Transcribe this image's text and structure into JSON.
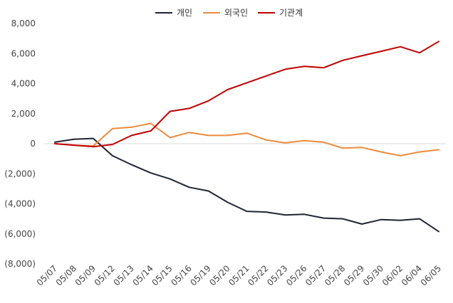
{
  "chart_data": {
    "type": "line",
    "title": "",
    "xlabel": "",
    "ylabel": "",
    "ylim": [
      -8000,
      8000
    ],
    "y_ticks": [
      8000,
      6000,
      4000,
      2000,
      0,
      -2000,
      -4000,
      -6000,
      -8000
    ],
    "y_tick_labels": [
      "8,000",
      "6,000",
      "4,000",
      "2,000",
      "0",
      "(2,000)",
      "(4,000)",
      "(6,000)",
      "(8,000)"
    ],
    "grid": false,
    "legend_position": "top",
    "categories": [
      "05/07",
      "05/08",
      "05/09",
      "05/12",
      "05/13",
      "05/14",
      "05/15",
      "05/16",
      "05/19",
      "05/20",
      "05/21",
      "05/22",
      "05/23",
      "05/26",
      "05/27",
      "05/28",
      "05/29",
      "05/30",
      "06/02",
      "06/04",
      "06/05"
    ],
    "series": [
      {
        "name": "개인",
        "color": "#1f2433",
        "values": [
          100,
          300,
          350,
          -800,
          -1400,
          -1950,
          -2350,
          -2900,
          -3150,
          -3900,
          -4500,
          -4550,
          -4750,
          -4700,
          -4950,
          -5000,
          -5350,
          -5050,
          -5100,
          -5000,
          -5850
        ]
      },
      {
        "name": "외국인",
        "color": "#ed8b3d",
        "values": [
          0,
          -100,
          -150,
          1000,
          1100,
          1350,
          400,
          750,
          550,
          550,
          700,
          250,
          50,
          200,
          100,
          -300,
          -250,
          -550,
          -800,
          -550,
          -400
        ]
      },
      {
        "name": "기관계",
        "color": "#c00000",
        "values": [
          0,
          -100,
          -200,
          -50,
          550,
          850,
          2150,
          2350,
          2850,
          3600,
          4050,
          4500,
          4950,
          5150,
          5050,
          5550,
          5850,
          6150,
          6450,
          6050,
          6800
        ]
      }
    ]
  }
}
